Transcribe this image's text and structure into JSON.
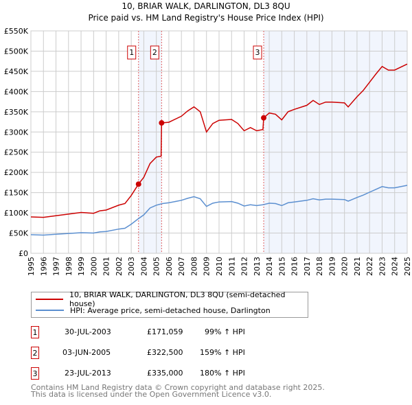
{
  "chart_data": {
    "type": "line",
    "title": "10, BRIAR WALK, DARLINGTON, DL3 8QU",
    "subtitle": "Price paid vs. HM Land Registry's House Price Index (HPI)",
    "xlim": [
      1995,
      2025
    ],
    "ylim": [
      0,
      550000
    ],
    "yticks": [
      0,
      50000,
      100000,
      150000,
      200000,
      250000,
      300000,
      350000,
      400000,
      450000,
      500000,
      550000
    ],
    "ytick_labels": [
      "£0",
      "£50K",
      "£100K",
      "£150K",
      "£200K",
      "£250K",
      "£300K",
      "£350K",
      "£400K",
      "£450K",
      "£500K",
      "£550K"
    ],
    "xticks": [
      1995,
      1996,
      1997,
      1998,
      1999,
      2000,
      2001,
      2002,
      2003,
      2004,
      2005,
      2006,
      2007,
      2008,
      2009,
      2010,
      2011,
      2012,
      2013,
      2014,
      2015,
      2016,
      2017,
      2018,
      2019,
      2020,
      2021,
      2022,
      2023,
      2024,
      2025
    ],
    "grid": true,
    "series": [
      {
        "name": "10, BRIAR WALK, DARLINGTON, DL3 8QU (semi-detached house)",
        "color": "#cc0000",
        "x": [
          1995,
          1996,
          1997,
          1998,
          1999,
          2000,
          2000.5,
          2001,
          2002,
          2002.5,
          2003,
          2003.58,
          2004,
          2004.5,
          2005,
          2005.38,
          2005.42,
          2006,
          2007,
          2007.5,
          2008,
          2008.5,
          2009,
          2009.5,
          2010,
          2011,
          2011.5,
          2012,
          2012.5,
          2013,
          2013.5,
          2013.56,
          2014,
          2014.5,
          2015,
          2015.5,
          2016,
          2017,
          2017.5,
          2018,
          2018.5,
          2019,
          2020,
          2020.3,
          2021,
          2021.5,
          2022,
          2022.5,
          2023,
          2023.5,
          2024,
          2025
        ],
        "y": [
          90000,
          89000,
          93000,
          97000,
          101000,
          99000,
          105000,
          107000,
          119000,
          123000,
          143000,
          171059,
          188000,
          222000,
          238000,
          240000,
          322500,
          324000,
          339000,
          352000,
          362000,
          350000,
          300000,
          321000,
          329000,
          331000,
          321000,
          303000,
          311000,
          303000,
          306000,
          335000,
          347000,
          344000,
          330000,
          350000,
          356000,
          366000,
          378000,
          368000,
          374000,
          374000,
          372000,
          362000,
          387000,
          403000,
          423000,
          443000,
          462000,
          453000,
          453000,
          468000
        ]
      },
      {
        "name": "HPI: Average price, semi-detached house, Darlington",
        "color": "#5b8fd0",
        "x": [
          1995,
          1996,
          1997,
          1998,
          1999,
          2000,
          2000.5,
          2001,
          2002,
          2002.5,
          2003,
          2003.5,
          2004,
          2004.5,
          2005,
          2005.5,
          2006,
          2007,
          2007.5,
          2008,
          2008.5,
          2009,
          2009.5,
          2010,
          2011,
          2011.5,
          2012,
          2012.5,
          2013,
          2013.5,
          2014,
          2014.5,
          2015,
          2015.5,
          2016,
          2017,
          2017.5,
          2018,
          2018.5,
          2019,
          2020,
          2020.3,
          2021,
          2021.5,
          2022,
          2022.5,
          2023,
          2023.5,
          2024,
          2025
        ],
        "y": [
          46000,
          45000,
          47000,
          49000,
          51000,
          50000,
          53000,
          54000,
          60000,
          62000,
          72000,
          84000,
          95000,
          112000,
          119000,
          123000,
          125000,
          131000,
          136000,
          140000,
          135000,
          116000,
          124000,
          127000,
          128000,
          124000,
          117000,
          120000,
          118000,
          120000,
          124000,
          123000,
          118000,
          125000,
          127000,
          131000,
          135000,
          132000,
          134000,
          134000,
          133000,
          129000,
          138000,
          144000,
          151000,
          158000,
          165000,
          162000,
          162000,
          168000
        ]
      }
    ],
    "sales": [
      {
        "label": "1",
        "x": 2003.58,
        "y": 171059
      },
      {
        "label": "2",
        "x": 2005.42,
        "y": 322500
      },
      {
        "label": "3",
        "x": 2013.56,
        "y": 335000
      }
    ],
    "shaded_ranges": [
      [
        2003.58,
        2005.42
      ],
      [
        2013.56,
        2025
      ]
    ]
  },
  "legend": [
    "10, BRIAR WALK, DARLINGTON, DL3 8QU (semi-detached house)",
    "HPI: Average price, semi-detached house, Darlington"
  ],
  "transactions": [
    {
      "num": "1",
      "date": "30-JUL-2003",
      "price": "£171,059",
      "hpi": "99% ↑ HPI"
    },
    {
      "num": "2",
      "date": "03-JUN-2005",
      "price": "£322,500",
      "hpi": "159% ↑ HPI"
    },
    {
      "num": "3",
      "date": "23-JUL-2013",
      "price": "£335,000",
      "hpi": "180% ↑ HPI"
    }
  ],
  "footer": [
    "Contains HM Land Registry data © Crown copyright and database right 2025.",
    "This data is licensed under the Open Government Licence v3.0."
  ]
}
